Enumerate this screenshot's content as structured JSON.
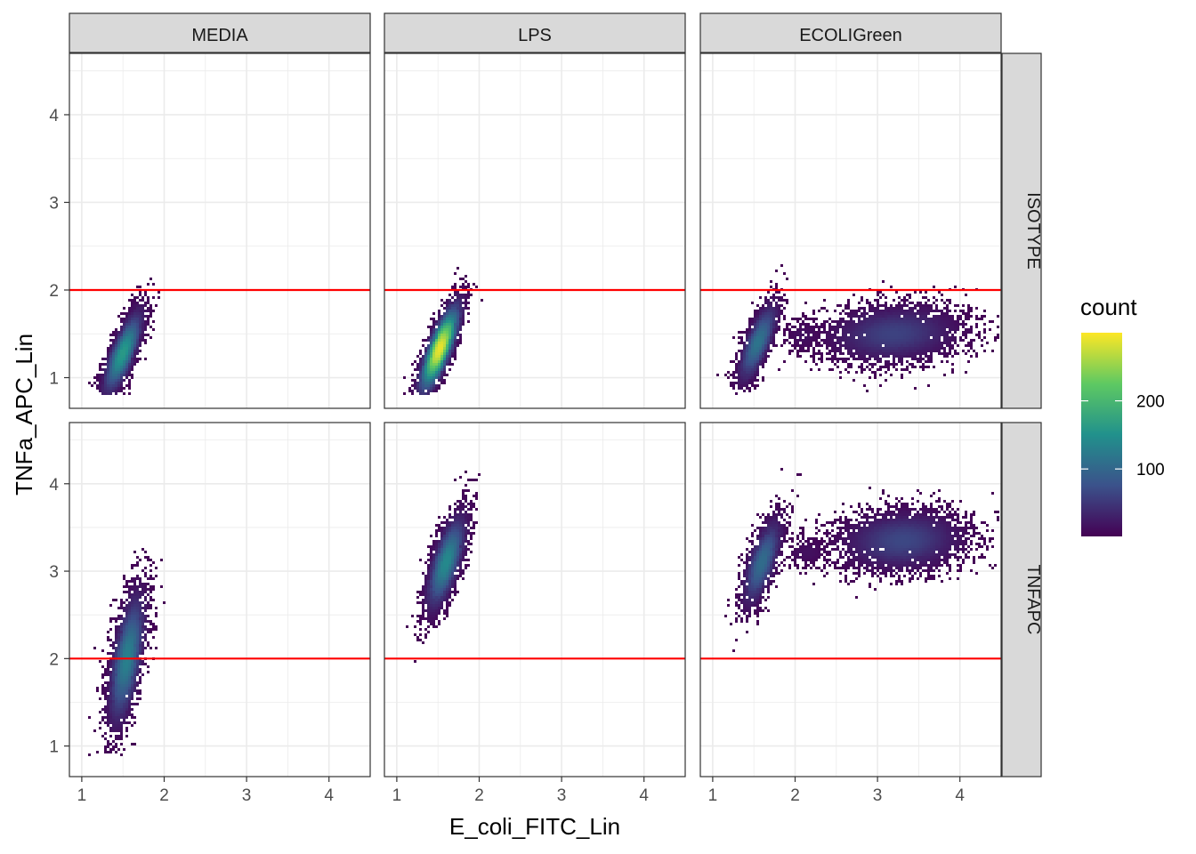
{
  "chart_data": {
    "type": "heatmap",
    "subtype": "faceted hexbin density",
    "xlabel": "E_coli_FITC_Lin",
    "ylabel": "TNFa_APC_Lin",
    "xlim": [
      0.85,
      4.5
    ],
    "ylim": [
      0.65,
      4.7
    ],
    "x_ticks": [
      1,
      2,
      3,
      4
    ],
    "y_ticks": [
      1,
      2,
      3,
      4
    ],
    "col_facets": [
      "MEDIA",
      "LPS",
      "ECOLIGreen"
    ],
    "row_facets": [
      "ISOTYPE",
      "TNFAPC"
    ],
    "reference_lines": [
      {
        "facet_row": "ISOTYPE",
        "y": 2,
        "color": "#ff0000"
      },
      {
        "facet_row": "TNFAPC",
        "y": 2,
        "color": "#ff0000"
      }
    ],
    "legend": {
      "title": "count",
      "placement": "right",
      "ticks": [
        100,
        200
      ],
      "range": [
        1,
        300
      ],
      "colormap": "viridis",
      "colors": [
        "#440154",
        "#3b528b",
        "#21918c",
        "#5ec962",
        "#fde725"
      ]
    },
    "grid": true,
    "panels": [
      {
        "row": "ISOTYPE",
        "col": "MEDIA",
        "clusters": [
          {
            "cx": 1.5,
            "cy": 1.28,
            "sx": 0.13,
            "sy": 0.26,
            "rho": 0.78,
            "n": 2600,
            "peak": 160,
            "ymin": 0.82
          }
        ]
      },
      {
        "row": "ISOTYPE",
        "col": "LPS",
        "clusters": [
          {
            "cx": 1.52,
            "cy": 1.33,
            "sx": 0.13,
            "sy": 0.27,
            "rho": 0.8,
            "n": 3000,
            "peak": 290,
            "ymin": 0.82
          }
        ]
      },
      {
        "row": "ISOTYPE",
        "col": "ECOLIGreen",
        "clusters": [
          {
            "cx": 1.55,
            "cy": 1.4,
            "sx": 0.13,
            "sy": 0.25,
            "rho": 0.75,
            "n": 1400,
            "peak": 115,
            "ymin": 0.82
          },
          {
            "cx": 3.2,
            "cy": 1.5,
            "sx": 0.45,
            "sy": 0.18,
            "rho": 0.12,
            "n": 3000,
            "peak": 60,
            "ymin": 0.82
          },
          {
            "cx": 2.1,
            "cy": 1.48,
            "sx": 0.13,
            "sy": 0.1,
            "rho": 0.0,
            "n": 200,
            "peak": 15,
            "ymin": 0.82
          }
        ]
      },
      {
        "row": "TNFAPC",
        "col": "MEDIA",
        "clusters": [
          {
            "cx": 1.55,
            "cy": 2.0,
            "sx": 0.12,
            "sy": 0.42,
            "rho": 0.6,
            "n": 2700,
            "peak": 130,
            "ymin": 0.9
          }
        ]
      },
      {
        "row": "TNFAPC",
        "col": "LPS",
        "clusters": [
          {
            "cx": 1.6,
            "cy": 3.1,
            "sx": 0.13,
            "sy": 0.3,
            "rho": 0.7,
            "n": 2300,
            "peak": 140,
            "ymin": 0.9
          }
        ]
      },
      {
        "row": "TNFAPC",
        "col": "ECOLIGreen",
        "clusters": [
          {
            "cx": 1.6,
            "cy": 3.1,
            "sx": 0.13,
            "sy": 0.28,
            "rho": 0.7,
            "n": 1300,
            "peak": 105,
            "ymin": 0.9
          },
          {
            "cx": 3.3,
            "cy": 3.35,
            "sx": 0.42,
            "sy": 0.19,
            "rho": 0.1,
            "n": 3100,
            "peak": 65,
            "ymin": 0.9
          },
          {
            "cx": 2.15,
            "cy": 3.22,
            "sx": 0.13,
            "sy": 0.1,
            "rho": 0.0,
            "n": 200,
            "peak": 15,
            "ymin": 0.9
          }
        ]
      }
    ]
  }
}
